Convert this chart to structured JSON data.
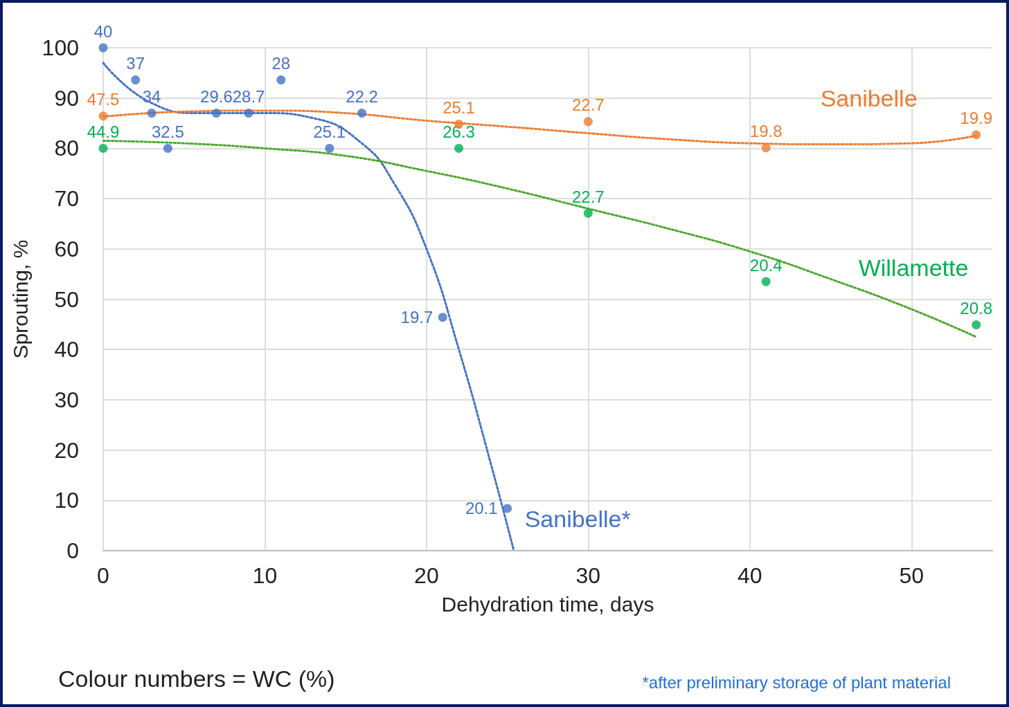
{
  "chart_data": {
    "type": "scatter",
    "xlabel": "Dehydration time, days",
    "ylabel": "Sprouting, %",
    "xlim": [
      0,
      55
    ],
    "xticks": [
      0,
      10,
      20,
      30,
      40,
      50
    ],
    "ylim": [
      0,
      100
    ],
    "yticks": [
      0,
      10,
      20,
      30,
      40,
      50,
      60,
      70,
      80,
      90,
      100
    ],
    "grid": true,
    "legend": false,
    "marker": "circle",
    "series": [
      {
        "name": "Sanibelle*",
        "color": "#4472c4",
        "x": [
          0,
          2,
          3,
          4,
          7,
          9,
          11,
          14,
          16,
          21,
          25
        ],
        "values": [
          100,
          93.6,
          87,
          80,
          87,
          87,
          93.6,
          80,
          87,
          46.4,
          8.4
        ]
      },
      {
        "name": "Sanibelle",
        "color": "#ed7d31",
        "x": [
          0,
          22,
          30,
          41,
          54
        ],
        "values": [
          86.4,
          84.8,
          85.3,
          80.1,
          82.7
        ]
      },
      {
        "name": "Willamette",
        "color": "#00b050",
        "x": [
          0,
          22,
          30,
          41,
          54
        ],
        "values": [
          80,
          80,
          67.1,
          53.5,
          44.9
        ]
      },
      {
        "type": "line",
        "color": "#4472c4",
        "line_style": "dotted",
        "marker": "none",
        "x": [
          0,
          3,
          6,
          10,
          13,
          16,
          18,
          20,
          22,
          24,
          25.4
        ],
        "values": [
          97,
          89,
          87,
          87,
          86,
          81,
          73,
          60,
          40,
          17,
          0
        ]
      },
      {
        "type": "line",
        "color": "#ed7d31",
        "line_style": "dotted",
        "marker": "none",
        "x": [
          0,
          5,
          10,
          15,
          20,
          25,
          30,
          35,
          40,
          45,
          50,
          54
        ],
        "values": [
          86.3,
          87.3,
          87.5,
          87,
          85.5,
          84.3,
          83,
          81.8,
          81,
          80.8,
          81,
          82.5
        ]
      },
      {
        "type": "line",
        "color": "#4ea72e",
        "line_style": "dotted",
        "marker": "none",
        "x": [
          0,
          5,
          10,
          15,
          20,
          25,
          30,
          35,
          40,
          45,
          50,
          54
        ],
        "values": [
          81.5,
          81,
          80,
          78.5,
          75.5,
          72,
          68,
          64,
          59.5,
          54,
          48,
          42.5
        ]
      }
    ],
    "annotations": [
      "Colour numbers = WC (%)",
      "*after preliminary storage of plant material",
      {
        "text": "40",
        "x": 0,
        "y": 100
      },
      {
        "text": "37",
        "x": 2,
        "y": 93.6
      },
      {
        "text": "34",
        "x": 3,
        "y": 87
      },
      {
        "text": "32.5",
        "x": 4,
        "y": 80
      },
      {
        "text": "29.6",
        "x": 7,
        "y": 87
      },
      {
        "text": "28.7",
        "x": 9,
        "y": 87
      },
      {
        "text": "28",
        "x": 11,
        "y": 93.6
      },
      {
        "text": "25.1",
        "x": 14,
        "y": 80
      },
      {
        "text": "22.2",
        "x": 16,
        "y": 87
      },
      {
        "text": "19.7",
        "x": 21,
        "y": 46.4
      },
      {
        "text": "20.1",
        "x": 25,
        "y": 8.4
      },
      {
        "text": "47.5",
        "x": 0,
        "y": 86.4
      },
      {
        "text": "25.1",
        "x": 22,
        "y": 84.8
      },
      {
        "text": "22.7",
        "x": 30,
        "y": 85.3
      },
      {
        "text": "19.8",
        "x": 41,
        "y": 80.1
      },
      {
        "text": "19.9",
        "x": 54,
        "y": 82.7
      },
      {
        "text": "44.9",
        "x": 0,
        "y": 80
      },
      {
        "text": "26.3",
        "x": 22,
        "y": 80
      },
      {
        "text": "22.7",
        "x": 30,
        "y": 67.1
      },
      {
        "text": "20.4",
        "x": 41,
        "y": 53.5
      },
      {
        "text": "20.8",
        "x": 54,
        "y": 44.9
      }
    ]
  }
}
